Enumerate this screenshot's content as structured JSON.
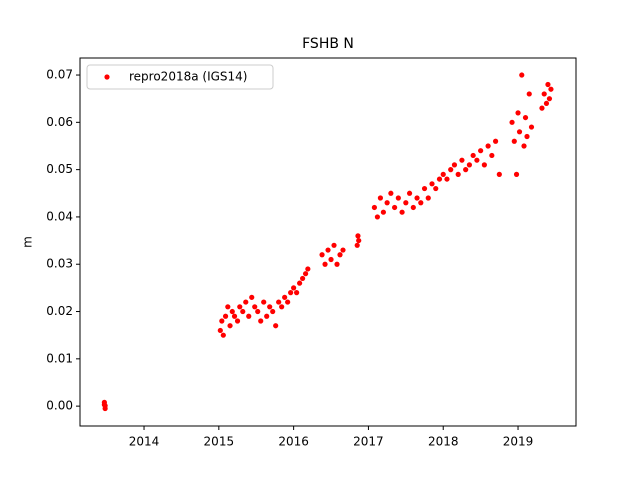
{
  "chart_data": {
    "type": "scatter",
    "title": "FSHB N",
    "y_label": "m",
    "xlim": [
      2013.144,
      2019.775
    ],
    "ylim": [
      -0.0042,
      0.0736
    ],
    "xticks": [
      2014,
      2015,
      2016,
      2017,
      2018,
      2019
    ],
    "yticks": [
      {
        "value": 0,
        "label": "0.00"
      },
      0.01,
      0.02,
      0.03,
      0.04,
      0.05,
      0.06,
      0.07
    ],
    "legend": "upper left",
    "series": [
      {
        "name": "repro2018a (IGS14)",
        "color": "#ff0000",
        "x": [
          2013.47,
          2013.47,
          2013.48,
          2013.48,
          2015.02,
          2015.04,
          2015.06,
          2015.09,
          2015.12,
          2015.15,
          2015.18,
          2015.21,
          2015.25,
          2015.28,
          2015.32,
          2015.36,
          2015.4,
          2015.44,
          2015.48,
          2015.52,
          2015.56,
          2015.6,
          2015.64,
          2015.68,
          2015.72,
          2015.76,
          2015.8,
          2015.84,
          2015.88,
          2015.92,
          2015.96,
          2016.0,
          2016.04,
          2016.08,
          2016.12,
          2016.16,
          2016.19,
          2016.38,
          2016.42,
          2016.46,
          2016.5,
          2016.54,
          2016.58,
          2016.62,
          2016.66,
          2016.85,
          2016.86,
          2016.87,
          2017.08,
          2017.12,
          2017.16,
          2017.2,
          2017.25,
          2017.3,
          2017.35,
          2017.4,
          2017.45,
          2017.5,
          2017.55,
          2017.6,
          2017.65,
          2017.7,
          2017.75,
          2017.8,
          2017.85,
          2017.9,
          2017.95,
          2018.0,
          2018.05,
          2018.1,
          2018.15,
          2018.2,
          2018.25,
          2018.3,
          2018.35,
          2018.4,
          2018.45,
          2018.5,
          2018.55,
          2018.6,
          2018.65,
          2018.7,
          2018.75,
          2018.92,
          2018.95,
          2018.98,
          2019.0,
          2019.02,
          2019.05,
          2019.08,
          2019.1,
          2019.12,
          2019.15,
          2019.18,
          2019.32,
          2019.35,
          2019.38,
          2019.4,
          2019.42,
          2019.44
        ],
        "values": [
          0.0008,
          0.0003,
          -0.0005,
          0.0001,
          0.016,
          0.018,
          0.015,
          0.019,
          0.021,
          0.017,
          0.02,
          0.019,
          0.018,
          0.021,
          0.02,
          0.022,
          0.019,
          0.023,
          0.021,
          0.02,
          0.018,
          0.022,
          0.019,
          0.021,
          0.02,
          0.017,
          0.022,
          0.021,
          0.023,
          0.022,
          0.024,
          0.025,
          0.024,
          0.026,
          0.027,
          0.028,
          0.029,
          0.032,
          0.03,
          0.033,
          0.031,
          0.034,
          0.03,
          0.032,
          0.033,
          0.034,
          0.036,
          0.035,
          0.042,
          0.04,
          0.044,
          0.041,
          0.043,
          0.045,
          0.042,
          0.044,
          0.041,
          0.043,
          0.045,
          0.042,
          0.044,
          0.043,
          0.046,
          0.044,
          0.047,
          0.046,
          0.048,
          0.049,
          0.048,
          0.05,
          0.051,
          0.049,
          0.052,
          0.05,
          0.051,
          0.053,
          0.052,
          0.054,
          0.051,
          0.055,
          0.053,
          0.056,
          0.049,
          0.06,
          0.056,
          0.049,
          0.062,
          0.058,
          0.07,
          0.055,
          0.061,
          0.057,
          0.066,
          0.059,
          0.063,
          0.066,
          0.064,
          0.068,
          0.065,
          0.067
        ]
      }
    ]
  }
}
